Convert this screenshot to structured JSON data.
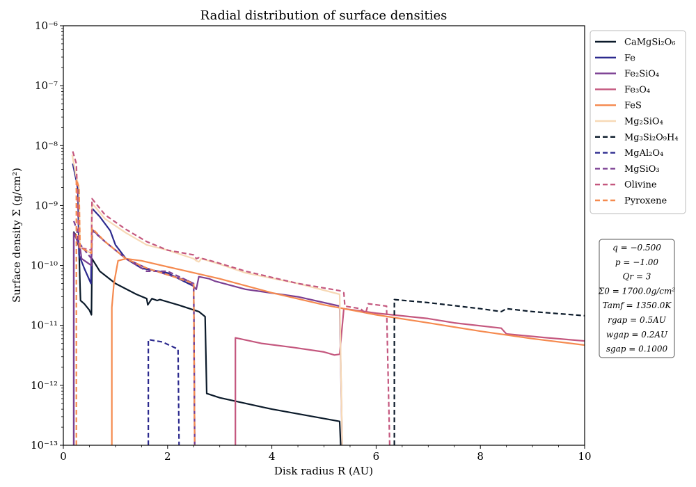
{
  "chart_data": {
    "type": "line",
    "title": "Radial distribution of surface densities",
    "xlabel": "Disk radius R (AU)",
    "ylabel": "Surface density Σ (g/cm²)",
    "xlim": [
      0,
      10
    ],
    "ylim": [
      1e-13,
      1e-06
    ],
    "yscale": "log",
    "grid": false,
    "legend_position": "top-right, outside plot",
    "x_ticks": [
      "0",
      "2",
      "4",
      "6",
      "8",
      "10"
    ],
    "y_ticks": [
      "10⁻¹³",
      "10⁻¹²",
      "10⁻¹¹",
      "10⁻¹⁰",
      "10⁻⁹",
      "10⁻⁸",
      "10⁻⁷",
      "10⁻⁶"
    ],
    "series": [
      {
        "name": "CaMgSi₂O₆",
        "color": "#0b1a2a",
        "dash": false,
        "points": [
          [
            0.2,
            1e-13
          ],
          [
            0.2,
            3.6e-10
          ],
          [
            0.24,
            3.2e-10
          ],
          [
            0.3,
            2e-10
          ],
          [
            0.32,
            4.5e-11
          ],
          [
            0.33,
            2.6e-11
          ],
          [
            0.4,
            2.3e-11
          ],
          [
            0.5,
            1.8e-11
          ],
          [
            0.54,
            1.5e-11
          ],
          [
            0.55,
            1.3e-10
          ],
          [
            0.7,
            8e-11
          ],
          [
            1.0,
            5e-11
          ],
          [
            1.4,
            3.3e-11
          ],
          [
            1.6,
            2.8e-11
          ],
          [
            1.62,
            2.2e-11
          ],
          [
            1.7,
            2.8e-11
          ],
          [
            1.8,
            2.6e-11
          ],
          [
            1.85,
            2.7e-11
          ],
          [
            2.2,
            2.2e-11
          ],
          [
            2.6,
            1.7e-11
          ],
          [
            2.72,
            1.4e-11
          ],
          [
            2.75,
            7.3e-13
          ],
          [
            3.0,
            6.2e-13
          ],
          [
            4.0,
            4e-13
          ],
          [
            5.3,
            2.5e-13
          ],
          [
            5.32,
            1e-13
          ]
        ]
      },
      {
        "name": "Fe",
        "color": "#2c2a8e",
        "dash": false,
        "points": [
          [
            0.18,
            5e-09
          ],
          [
            0.25,
            2.6e-09
          ],
          [
            0.28,
            1.8e-09
          ],
          [
            0.3,
            1.5e-10
          ],
          [
            0.4,
            9e-11
          ],
          [
            0.53,
            5e-11
          ],
          [
            0.55,
            9e-10
          ],
          [
            0.7,
            6.5e-10
          ],
          [
            0.9,
            3.8e-10
          ],
          [
            1.0,
            2.2e-10
          ],
          [
            1.2,
            1.3e-10
          ],
          [
            1.5,
            9e-11
          ],
          [
            2.0,
            7.5e-11
          ],
          [
            2.3,
            5.5e-11
          ],
          [
            2.5,
            4.5e-11
          ],
          [
            2.52,
            1e-13
          ]
        ]
      },
      {
        "name": "Fe₂SiO₄",
        "color": "#7b3f92",
        "dash": false,
        "points": [
          [
            0.2,
            1e-13
          ],
          [
            0.2,
            3.5e-10
          ],
          [
            0.32,
            2e-10
          ],
          [
            0.35,
            1.3e-10
          ],
          [
            0.54,
            1e-10
          ],
          [
            0.55,
            4e-10
          ],
          [
            0.8,
            2.5e-10
          ],
          [
            1.2,
            1.3e-10
          ],
          [
            1.6,
            9e-11
          ],
          [
            2.0,
            7e-11
          ],
          [
            2.4,
            5.5e-11
          ],
          [
            2.55,
            4e-11
          ],
          [
            2.6,
            6.5e-11
          ],
          [
            2.8,
            6e-11
          ],
          [
            2.9,
            5.5e-11
          ],
          [
            3.5,
            4e-11
          ],
          [
            4.5,
            3e-11
          ],
          [
            5.3,
            2.1e-11
          ],
          [
            5.35,
            1e-13
          ]
        ]
      },
      {
        "name": "Fe₃O₄",
        "color": "#c4577e",
        "dash": false,
        "points": [
          [
            3.3,
            1e-13
          ],
          [
            3.3,
            6.2e-12
          ],
          [
            3.8,
            5e-12
          ],
          [
            4.4,
            4.3e-12
          ],
          [
            5.0,
            3.6e-12
          ],
          [
            5.2,
            3.2e-12
          ],
          [
            5.3,
            3.3e-12
          ],
          [
            5.38,
            1.9e-11
          ],
          [
            6.0,
            1.6e-11
          ],
          [
            7.0,
            1.3e-11
          ],
          [
            7.5,
            1.1e-11
          ],
          [
            8.4,
            9e-12
          ],
          [
            8.5,
            7.2e-12
          ],
          [
            9.2,
            6.3e-12
          ],
          [
            10.0,
            5.5e-12
          ]
        ]
      },
      {
        "name": "FeS",
        "color": "#f58a4f",
        "dash": false,
        "points": [
          [
            0.93,
            1e-13
          ],
          [
            0.93,
            2e-11
          ],
          [
            0.97,
            5e-11
          ],
          [
            1.05,
            1.2e-10
          ],
          [
            1.2,
            1.3e-10
          ],
          [
            1.5,
            1.2e-10
          ],
          [
            2.0,
            9.5e-11
          ],
          [
            3.0,
            6e-11
          ],
          [
            4.0,
            3.5e-11
          ],
          [
            5.0,
            2.2e-11
          ],
          [
            6.0,
            1.5e-11
          ],
          [
            7.0,
            1.1e-11
          ],
          [
            8.0,
            8e-12
          ],
          [
            9.0,
            6e-12
          ],
          [
            10.0,
            4.7e-12
          ]
        ]
      },
      {
        "name": "Mg₂SiO₄",
        "color": "#f7d9b6",
        "dash": false,
        "points": [
          [
            0.17,
            7e-09
          ],
          [
            0.25,
            3e-09
          ],
          [
            0.3,
            2e-09
          ],
          [
            0.32,
            2e-10
          ],
          [
            0.54,
            1.6e-10
          ],
          [
            0.55,
            1.1e-09
          ],
          [
            0.8,
            6e-10
          ],
          [
            1.2,
            3.5e-10
          ],
          [
            1.6,
            2.2e-10
          ],
          [
            2.0,
            1.8e-10
          ],
          [
            2.5,
            1.3e-10
          ],
          [
            2.55,
            1.2e-10
          ],
          [
            2.6,
            1.15e-10
          ],
          [
            2.65,
            1.3e-10
          ],
          [
            3.0,
            1.05e-10
          ],
          [
            3.5,
            7.5e-11
          ],
          [
            4.5,
            5e-11
          ],
          [
            5.3,
            3.3e-11
          ],
          [
            5.35,
            1e-13
          ]
        ]
      },
      {
        "name": "Mg₃Si₂O₉H₄",
        "color": "#0b1a2a",
        "dash": true,
        "points": [
          [
            6.35,
            1e-13
          ],
          [
            6.35,
            2.7e-11
          ],
          [
            7.0,
            2.4e-11
          ],
          [
            8.0,
            1.9e-11
          ],
          [
            8.4,
            1.7e-11
          ],
          [
            8.5,
            1.9e-11
          ],
          [
            9.0,
            1.7e-11
          ],
          [
            10.0,
            1.45e-11
          ]
        ]
      },
      {
        "name": "MgAl₂O₄",
        "color": "#2c2a8e",
        "dash": true,
        "points": [
          [
            1.63,
            1e-13
          ],
          [
            1.63,
            5.8e-12
          ],
          [
            1.9,
            5.3e-12
          ],
          [
            2.2,
            4e-12
          ],
          [
            2.22,
            1e-13
          ]
        ]
      },
      {
        "name": "MgSiO₃",
        "color": "#7b3f92",
        "dash": true,
        "points": [
          [
            0.2,
            5.5e-10
          ],
          [
            0.26,
            4e-10
          ],
          [
            0.28,
            2.5e-10
          ],
          [
            0.54,
            1.3e-10
          ],
          [
            0.56,
            3.8e-10
          ],
          [
            0.8,
            2.5e-10
          ],
          [
            1.2,
            1.3e-10
          ],
          [
            1.6,
            8e-11
          ],
          [
            2.0,
            8e-11
          ],
          [
            2.5,
            5e-11
          ],
          [
            2.52,
            1e-13
          ]
        ]
      },
      {
        "name": "Olivine",
        "color": "#c4577e",
        "dash": true,
        "points": [
          [
            0.18,
            8e-09
          ],
          [
            0.25,
            5e-09
          ],
          [
            0.3,
            2e-10
          ],
          [
            0.54,
            1.8e-10
          ],
          [
            0.55,
            1.3e-09
          ],
          [
            0.8,
            7e-10
          ],
          [
            1.2,
            4e-10
          ],
          [
            1.6,
            2.5e-10
          ],
          [
            2.0,
            1.8e-10
          ],
          [
            2.5,
            1.5e-10
          ],
          [
            2.55,
            1.3e-10
          ],
          [
            2.6,
            1.35e-10
          ],
          [
            2.9,
            1.15e-10
          ],
          [
            3.5,
            8e-11
          ],
          [
            4.5,
            5e-11
          ],
          [
            5.3,
            3.8e-11
          ],
          [
            5.38,
            3.5e-11
          ],
          [
            5.4,
            2.1e-11
          ],
          [
            5.7,
            1.9e-11
          ],
          [
            5.8,
            1.6e-11
          ],
          [
            5.85,
            2.3e-11
          ],
          [
            6.2,
            2.1e-11
          ],
          [
            6.26,
            1e-13
          ]
        ]
      },
      {
        "name": "Pyroxene",
        "color": "#f58a4f",
        "dash": true,
        "points": [
          [
            0.25,
            1e-13
          ],
          [
            0.25,
            2.7e-09
          ],
          [
            0.3,
            2e-09
          ],
          [
            0.32,
            2e-10
          ],
          [
            0.54,
            1.6e-10
          ],
          [
            0.55,
            4.2e-10
          ],
          [
            0.8,
            2.5e-10
          ],
          [
            1.2,
            1.3e-10
          ],
          [
            1.6,
            9e-11
          ],
          [
            2.0,
            7e-11
          ],
          [
            2.5,
            5e-11
          ],
          [
            2.52,
            1e-13
          ]
        ]
      }
    ],
    "params_box": [
      "q = −0.500",
      "p = −1.00",
      "Qr = 3",
      "Σ0 = 1700.0g/cm²",
      "Tamf = 1350.0K",
      "rgap = 0.5AU",
      "wgap = 0.2AU",
      "sgap = 0.1000"
    ]
  }
}
